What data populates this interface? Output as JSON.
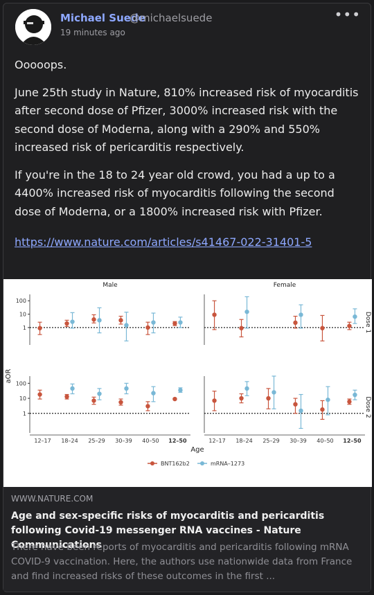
{
  "post": {
    "author_name": "Michael Suede",
    "author_handle": "@michaelsuede",
    "timestamp": "19 minutes ago",
    "more_icon": "more-icon",
    "paragraphs": [
      "Ooooops.",
      "June 25th study in Nature, 810% increased risk of myocarditis after second dose of Pfizer, 3000% increased risk with the second dose of Moderna, along with a 290% and 550% increased risk of pericarditis respectively.",
      "If you're in the 18 to 24 year old crowd, you had a up to a 4400% increased risk of myocarditis following the second dose of Moderna, or a 1800% increased risk with Pfizer."
    ],
    "link_text": "https://www.nature.com/articles/s41467-022-31401-5"
  },
  "link_card": {
    "domain": "WWW.NATURE.COM",
    "title": "Age and sex-specific risks of myocarditis and pericarditis following Covid-19 messenger RNA vaccines - Nature Communications",
    "description": "There have been reports of myocarditis and pericarditis following mRNA COVID-9 vaccination. Here, the authors use nationwide data from France and find increased risks of these outcomes in the first ..."
  },
  "chart_data": {
    "type": "scatter",
    "panels": [
      "Male",
      "Female"
    ],
    "rows": [
      "Dose 1",
      "Dose 2"
    ],
    "categories": [
      "12–17",
      "18–24",
      "25–29",
      "30–39",
      "40–50",
      "12–50"
    ],
    "bold_category": "12–50",
    "xlabel": "Age",
    "ylabel": "aOR",
    "yscale": "log",
    "yticks": [
      1,
      10,
      100
    ],
    "ylim": [
      0.05,
      300
    ],
    "reference_line": 1,
    "legend": [
      "BNT162b2",
      "mRNA–1273"
    ],
    "colors": {
      "BNT162b2": "#c8553d",
      "mRNA–1273": "#79b8d6"
    },
    "series": [
      {
        "name": "BNT162b2",
        "panel": "Male",
        "dose": "Dose 1",
        "points": [
          [
            0.9,
            0.3,
            2.5
          ],
          [
            2,
            1.2,
            3.5
          ],
          [
            4,
            2.2,
            9
          ],
          [
            3.5,
            1.8,
            7
          ],
          [
            1,
            0.3,
            2.5
          ],
          [
            2,
            1.4,
            2.8
          ]
        ]
      },
      {
        "name": "mRNA–1273",
        "panel": "Male",
        "dose": "Dose 1",
        "points": [
          null,
          [
            2.7,
            0.9,
            13
          ],
          [
            3.5,
            0.4,
            30
          ],
          [
            1.5,
            0.1,
            14
          ],
          [
            2.4,
            0.4,
            12
          ],
          [
            2.4,
            1,
            6
          ]
        ]
      },
      {
        "name": "BNT162b2",
        "panel": "Female",
        "dose": "Dose 1",
        "points": [
          [
            9,
            0.7,
            100
          ],
          [
            0.9,
            0.2,
            4
          ],
          null,
          [
            2.3,
            0.9,
            7
          ],
          [
            0.9,
            0.1,
            8
          ],
          [
            1.3,
            0.7,
            2.5
          ]
        ]
      },
      {
        "name": "mRNA–1273",
        "panel": "Female",
        "dose": "Dose 1",
        "points": [
          null,
          [
            15,
            0.9,
            200
          ],
          null,
          [
            9,
            0.9,
            50
          ],
          null,
          [
            6.5,
            2,
            25
          ]
        ]
      },
      {
        "name": "BNT162b2",
        "panel": "Male",
        "dose": "Dose 2",
        "points": [
          [
            18,
            9,
            35
          ],
          [
            13,
            9,
            18
          ],
          [
            7,
            4,
            12
          ],
          [
            5.5,
            3.5,
            9
          ],
          [
            3,
            1.5,
            6
          ],
          [
            9,
            8,
            10
          ]
        ]
      },
      {
        "name": "mRNA–1273",
        "panel": "Male",
        "dose": "Dose 2",
        "points": [
          null,
          [
            45,
            20,
            90
          ],
          [
            20,
            8,
            45
          ],
          [
            45,
            20,
            100
          ],
          [
            22,
            6,
            60
          ],
          [
            35,
            25,
            50
          ]
        ]
      },
      {
        "name": "BNT162b2",
        "panel": "Female",
        "dose": "Dose 2",
        "points": [
          [
            7,
            1.5,
            30
          ],
          [
            10,
            5,
            20
          ],
          [
            10,
            2,
            45
          ],
          [
            4,
            1,
            10
          ],
          [
            1.8,
            0.4,
            7
          ],
          [
            6,
            4,
            9
          ]
        ]
      },
      {
        "name": "mRNA–1273",
        "panel": "Female",
        "dose": "Dose 2",
        "points": [
          null,
          [
            45,
            15,
            130
          ],
          [
            25,
            2,
            300
          ],
          [
            1.5,
            0.1,
            18
          ],
          [
            8,
            0.8,
            60
          ],
          [
            17,
            8,
            35
          ]
        ]
      }
    ]
  }
}
